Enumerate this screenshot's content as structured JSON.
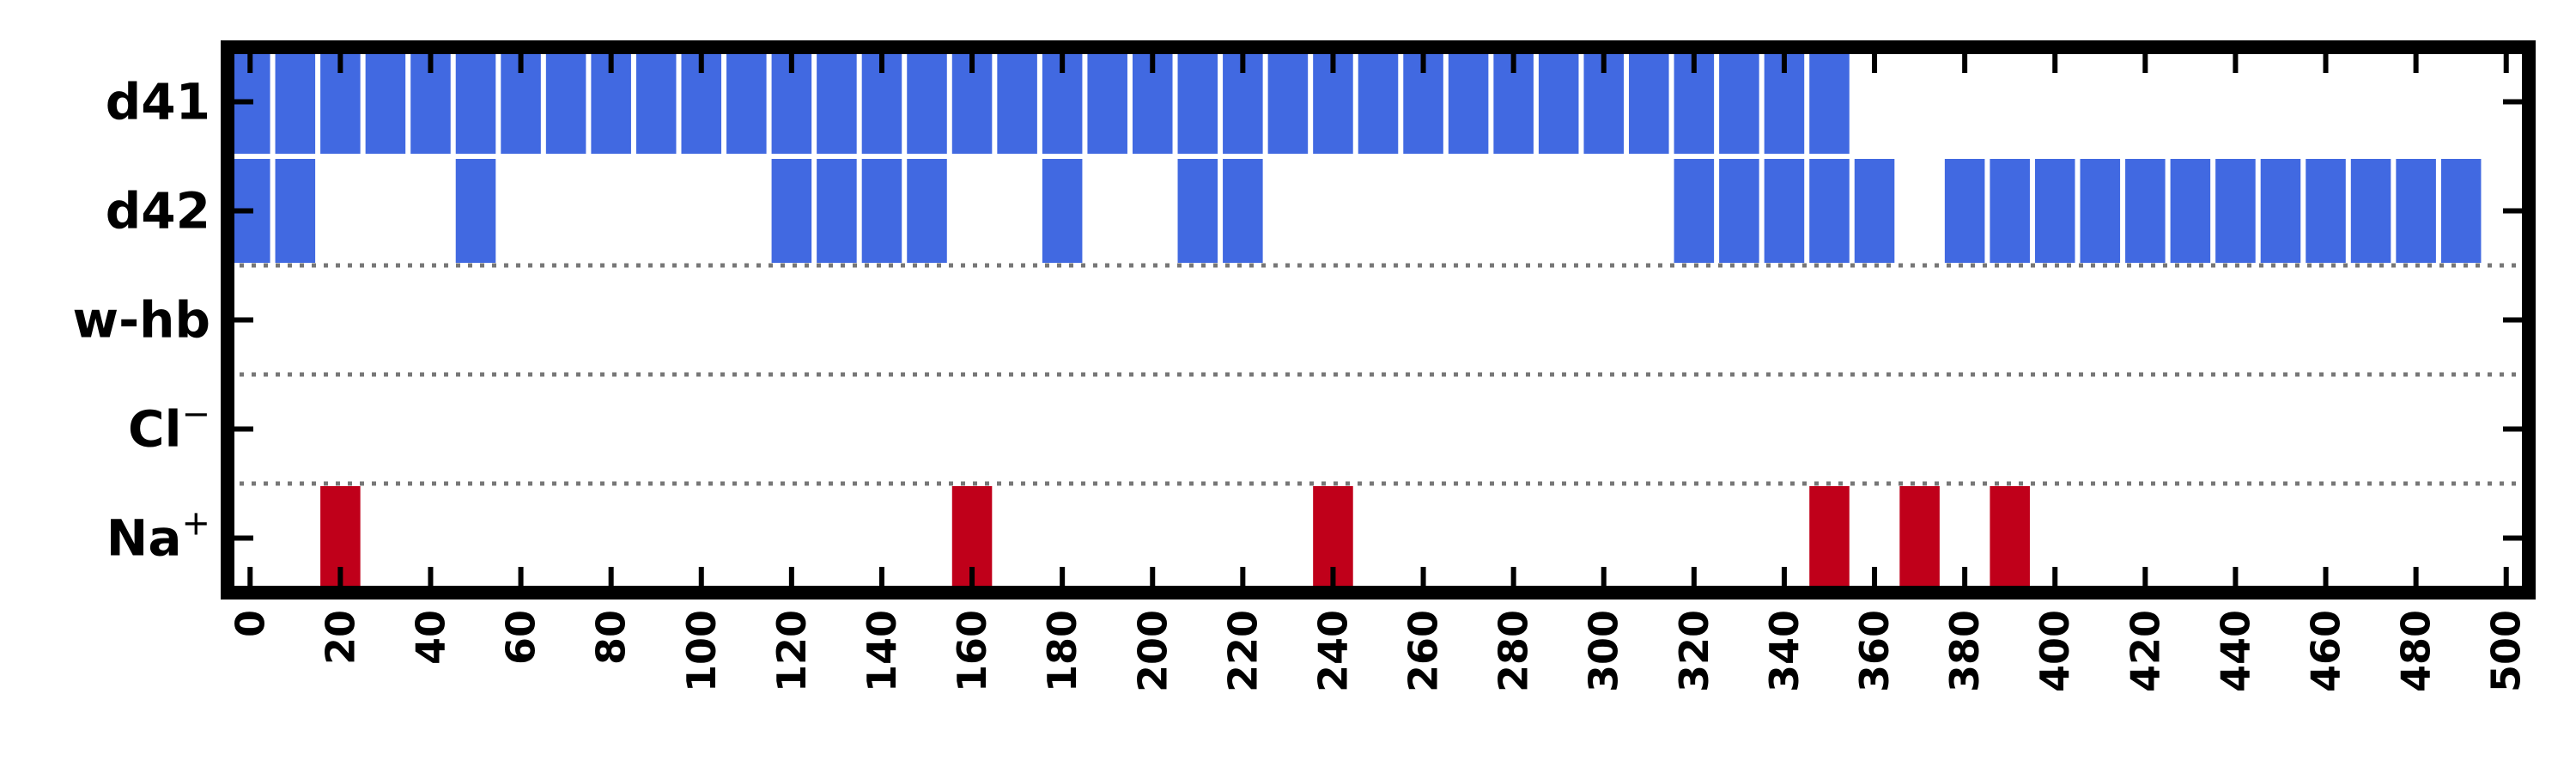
{
  "chart_data": {
    "type": "bar",
    "orientation": "event-raster",
    "xlim": [
      -5,
      505
    ],
    "x_ticks": [
      0,
      20,
      40,
      60,
      80,
      100,
      120,
      140,
      160,
      180,
      200,
      220,
      240,
      260,
      280,
      300,
      320,
      340,
      360,
      380,
      400,
      420,
      440,
      460,
      480,
      500
    ],
    "bin_width": 10,
    "grid": "dotted separators between row groups",
    "categories": [
      {
        "label": "d41",
        "label_base": "d41",
        "label_sup": ""
      },
      {
        "label": "d42",
        "label_base": "d42",
        "label_sup": ""
      },
      {
        "label": "w-hb",
        "label_base": "w-hb",
        "label_sup": ""
      },
      {
        "label": "Cl−",
        "label_base": "Cl",
        "label_sup": "−"
      },
      {
        "label": "Na+",
        "label_base": "Na",
        "label_sup": "+"
      }
    ],
    "series": [
      {
        "category": "d41",
        "color": "#4169e1",
        "x": [
          0,
          10,
          20,
          30,
          40,
          50,
          60,
          70,
          80,
          90,
          100,
          110,
          120,
          130,
          140,
          150,
          160,
          170,
          180,
          190,
          200,
          210,
          220,
          230,
          240,
          250,
          260,
          270,
          280,
          290,
          300,
          310,
          320,
          330,
          340,
          350
        ]
      },
      {
        "category": "d42",
        "color": "#4169e1",
        "x": [
          0,
          10,
          50,
          120,
          130,
          140,
          150,
          180,
          210,
          220,
          320,
          330,
          340,
          350,
          360,
          380,
          390,
          400,
          410,
          420,
          430,
          440,
          450,
          460,
          470,
          480,
          490
        ]
      },
      {
        "category": "w-hb",
        "color": "#4169e1",
        "x": []
      },
      {
        "category": "Cl−",
        "color": "#4169e1",
        "x": []
      },
      {
        "category": "Na+",
        "color": "#c0001a",
        "x": [
          20,
          160,
          240,
          350,
          370,
          390
        ]
      }
    ]
  }
}
